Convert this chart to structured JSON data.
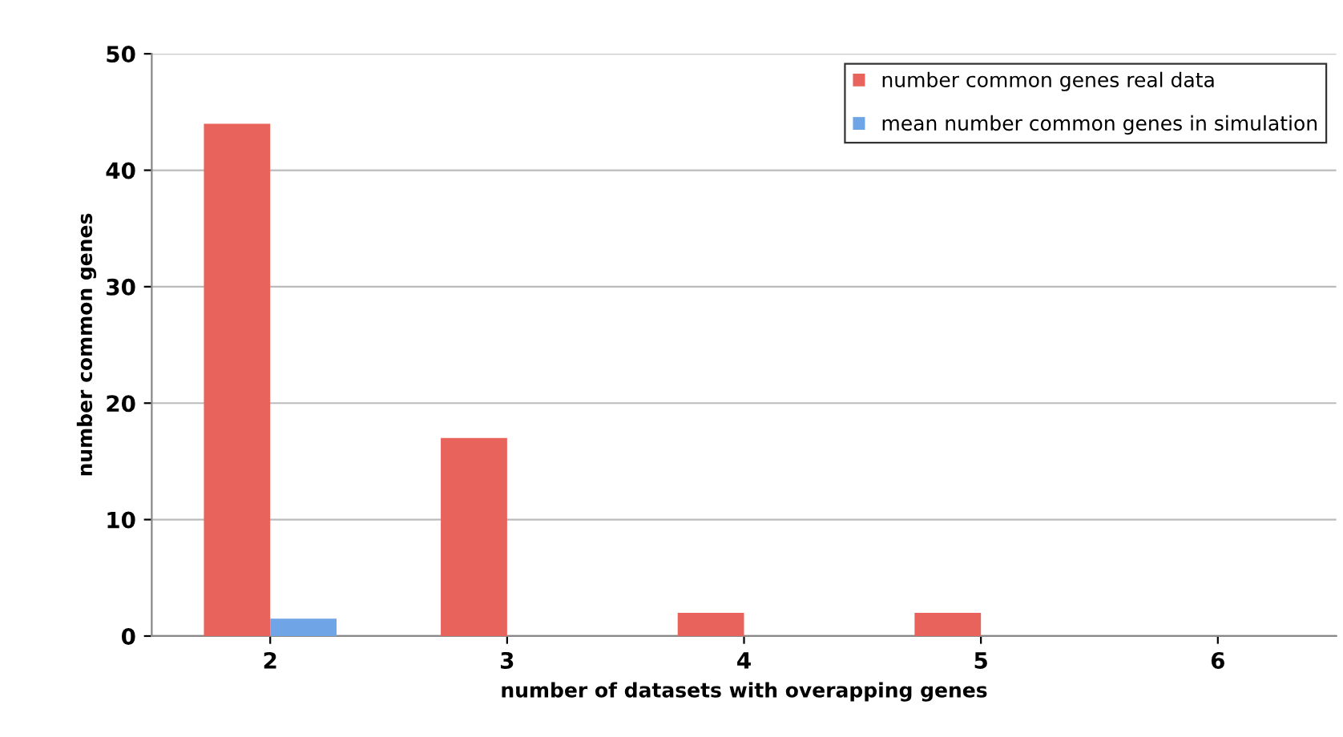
{
  "chart_data": {
    "type": "bar",
    "xlabel": "number of datasets with overapping genes",
    "ylabel": "number common genes",
    "categories": [
      "2",
      "3",
      "4",
      "5",
      "6"
    ],
    "series": [
      {
        "name": "number common genes real data",
        "color": "#e8635c",
        "values": [
          44,
          17,
          2,
          2,
          0
        ]
      },
      {
        "name": "mean number common genes in simulation",
        "color": "#6fa5e6",
        "values": [
          1.5,
          0,
          0,
          0,
          0
        ]
      }
    ],
    "ylim": [
      0,
      50
    ],
    "yticks": [
      0,
      10,
      20,
      30,
      40,
      50
    ],
    "grid": "y",
    "legend": "top right"
  }
}
